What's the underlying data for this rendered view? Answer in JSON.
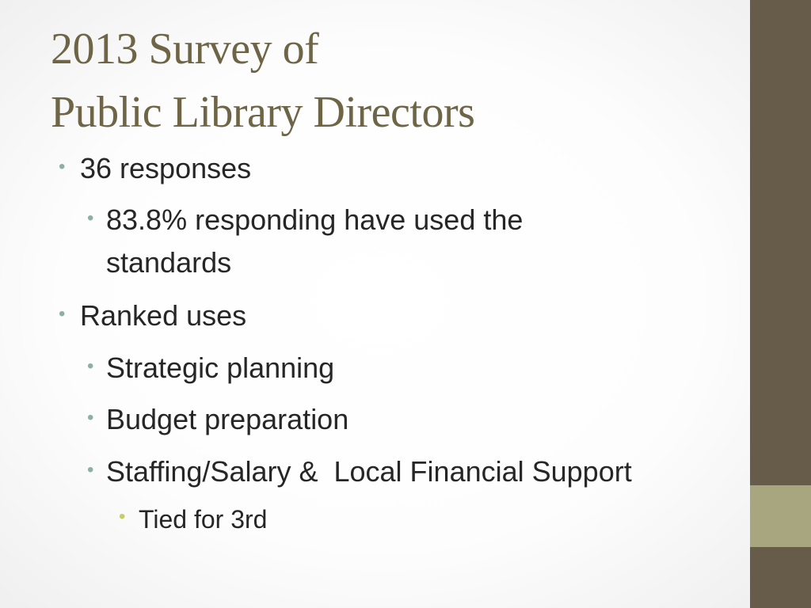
{
  "slide": {
    "title_line1": "2013 Survey of",
    "title_line2": "Public Library Directors",
    "bullets": {
      "b1": "36 responses",
      "b1_1_line1": "83.8% responding have used the",
      "b1_1_line2": "standards",
      "b2": "Ranked uses",
      "b2_1": "Strategic planning",
      "b2_2": "Budget preparation",
      "b2_3": "Staffing/Salary &  Local Financial Support",
      "b2_3_1": "Tied for 3rd"
    },
    "bullet_glyph": "•"
  },
  "colors": {
    "title": "#6e6546",
    "body_text": "#262626",
    "bullet_level12": "#8cb0a8",
    "bullet_level3": "#c9cc66",
    "side_bar": "#675c4a",
    "side_accent": "#a8a67e"
  }
}
